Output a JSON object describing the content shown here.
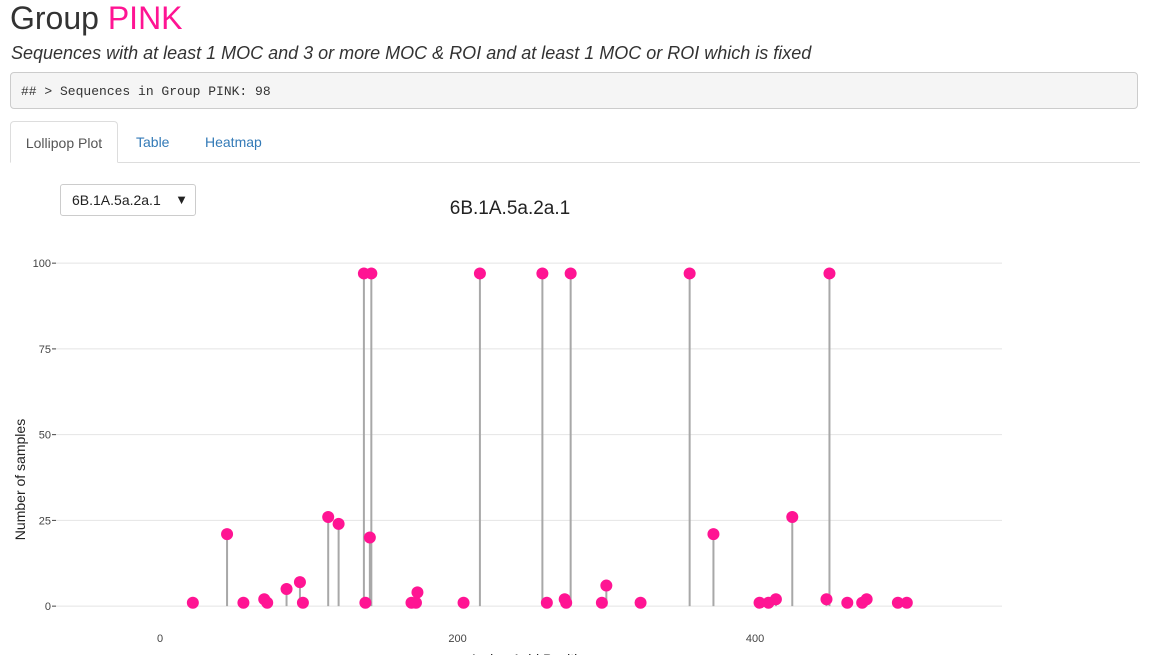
{
  "header": {
    "title_prefix": "Group",
    "title_accent": "PINK",
    "accent_color": "#ff1493",
    "subtitle": "Sequences with at least 1 MOC and 3 or more MOC & ROI and at least 1 MOC or ROI which is fixed"
  },
  "console": {
    "output": "## > Sequences in Group PINK: 98"
  },
  "tabs": [
    {
      "label": "Lollipop Plot",
      "active": true
    },
    {
      "label": "Table",
      "active": false
    },
    {
      "label": "Heatmap",
      "active": false
    }
  ],
  "selector": {
    "value": "6B.1A.5a.2a.1",
    "arrow": "▼"
  },
  "chart_data": {
    "type": "scatter",
    "style": "lollipop",
    "title": "6B.1A.5a.2a.1",
    "xlabel": "Amino Acid Position",
    "ylabel": "Number of samples",
    "xlim": [
      -70,
      566
    ],
    "ylim": [
      -2,
      105
    ],
    "x_ticks": [
      0,
      200,
      400
    ],
    "x_tick_labels": [
      "0",
      "200",
      "400"
    ],
    "y_ticks": [
      0,
      25,
      50,
      75,
      100
    ],
    "y_tick_labels": [
      "0",
      "25",
      "50",
      "75",
      "100"
    ],
    "grid": true,
    "point_color": "#ff1493",
    "stem_color": "#a8a8a8",
    "series": [
      {
        "x": [
          22,
          45,
          56,
          70,
          72,
          85,
          94,
          96,
          113,
          120,
          137,
          138,
          141,
          142,
          169,
          172,
          173,
          204,
          215,
          257,
          260,
          272,
          273,
          276,
          297,
          300,
          323,
          356,
          372,
          403,
          409,
          414,
          425,
          448,
          450,
          462,
          472,
          475,
          496,
          502
        ],
        "y": [
          1,
          21,
          1,
          2,
          1,
          5,
          7,
          1,
          26,
          24,
          97,
          1,
          20,
          97,
          1,
          1,
          4,
          1,
          97,
          97,
          1,
          2,
          1,
          97,
          1,
          6,
          1,
          97,
          21,
          1,
          1,
          2,
          26,
          2,
          97,
          1,
          1,
          2,
          1,
          1
        ]
      }
    ]
  }
}
